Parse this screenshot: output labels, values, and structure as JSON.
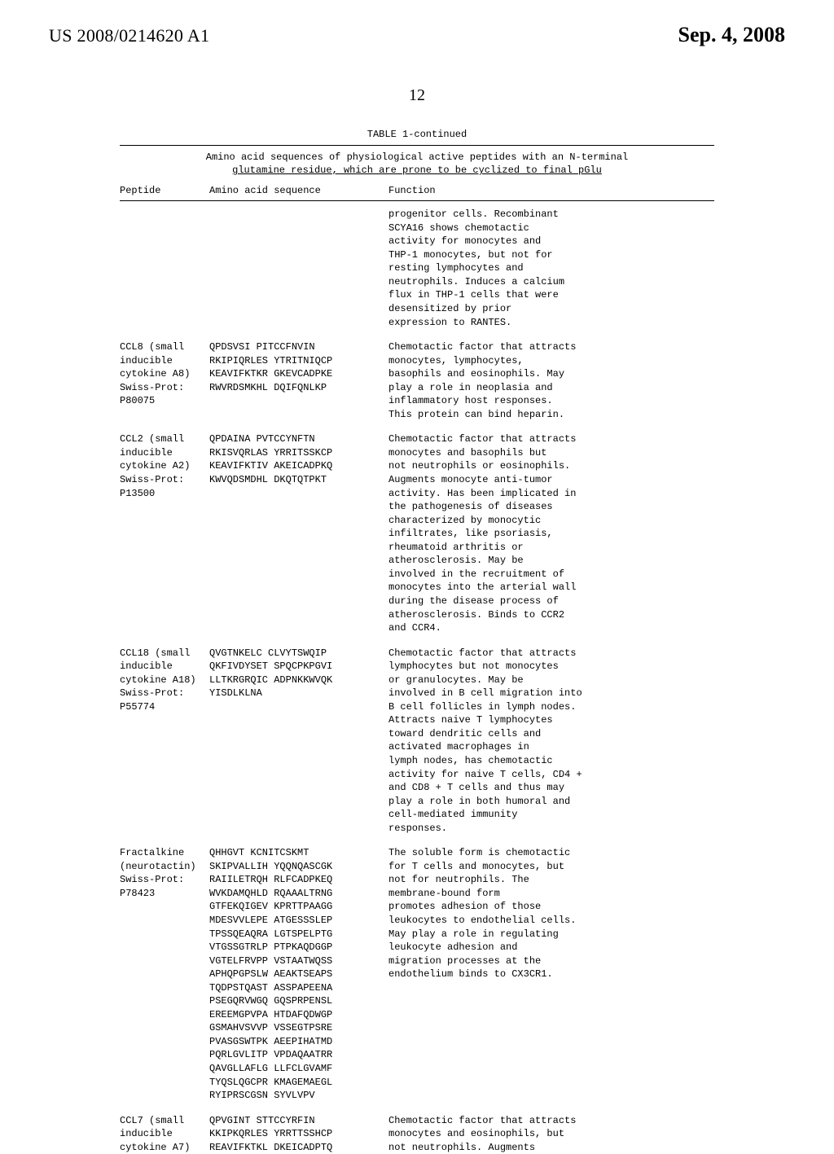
{
  "header": {
    "pub_number": "US 2008/0214620 A1",
    "date": "Sep. 4, 2008"
  },
  "page_number": "12",
  "table": {
    "title": "TABLE 1-continued",
    "subtitle_line1": "Amino acid sequences of physiological active peptides with an N-terminal",
    "subtitle_line2": "glutamine residue, which are prone to be cyclized to final pGlu",
    "columns": {
      "peptide": "Peptide",
      "sequence": "Amino acid sequence",
      "function": "Function"
    },
    "rows": [
      {
        "peptide": "",
        "sequence": "",
        "function": "progenitor cells. Recombinant\nSCYA16 shows chemotactic\nactivity for monocytes and\nTHP-1 monocytes, but not for\nresting lymphocytes and\nneutrophils. Induces a calcium\nflux in THP-1 cells that were\ndesensitized by prior\nexpression to RANTES."
      },
      {
        "peptide": "CCL8 (small\ninducible\ncytokine A8)\nSwiss-Prot:\nP80075",
        "sequence": "QPDSVSI PITCCFNVIN\nRKIPIQRLES YTRITNIQCP\nKEAVIFKTKR GKEVCADPKE\nRWVRDSMKHL DQIFQNLKP",
        "function": "Chemotactic factor that attracts\nmonocytes, lymphocytes,\nbasophils and eosinophils. May\nplay a role in neoplasia and\ninflammatory host responses.\nThis protein can bind heparin."
      },
      {
        "peptide": "CCL2 (small\ninducible\ncytokine A2)\nSwiss-Prot:\nP13500",
        "sequence": "QPDAINA PVTCCYNFTN\nRKISVQRLAS YRRITSSKCP\nKEAVIFKTIV AKEICADPKQ\nKWVQDSMDHL DKQTQTPKT",
        "function": "Chemotactic factor that attracts\nmonocytes and basophils but\nnot neutrophils or eosinophils.\nAugments monocyte anti-tumor\nactivity. Has been implicated in\nthe pathogenesis of diseases\ncharacterized by monocytic\ninfiltrates, like psoriasis,\nrheumatoid arthritis or\natherosclerosis. May be\ninvolved in the recruitment of\nmonocytes into the arterial wall\nduring the disease process of\natherosclerosis. Binds to CCR2\nand CCR4."
      },
      {
        "peptide": "CCL18 (small\ninducible\ncytokine A18)\nSwiss-Prot:\nP55774",
        "sequence": "QVGTNKELC CLVYTSWQIP\nQKFIVDYSET SPQCPKPGVI\nLLTKRGRQIC ADPNKKWVQK\nYISDLKLNA",
        "function": "Chemotactic factor that attracts\nlymphocytes but not monocytes\nor granulocytes. May be\ninvolved in B cell migration into\nB cell follicles in lymph nodes.\nAttracts naive T lymphocytes\ntoward dendritic cells and\nactivated macrophages in\nlymph nodes, has chemotactic\nactivity for naive T cells, CD4 +\nand CD8 + T cells and thus may\nplay a role in both humoral and\ncell-mediated immunity\nresponses."
      },
      {
        "peptide": "Fractalkine\n(neurotactin)\nSwiss-Prot:\nP78423",
        "sequence": "QHHGVT KCNITCSKMT\nSKIPVALLIH YQQNQASCGK\nRAIILETRQH RLFCADPKEQ\nWVKDAMQHLD RQAAALTRNG\nGTFEKQIGEV KPRTTPAAGG\nMDESVVLEPE ATGESSSLEP\nTPSSQEAQRA LGTSPELPTG\nVTGSSGTRLP PTPKAQDGGP\nVGTELFRVPP VSTAATWQSS\nAPHQPGPSLW AEAKTSEAPS\nTQDPSTQAST ASSPAPEENA\nPSEGQRVWGQ GQSPRPENSL\nEREEMGPVPA HTDAFQDWGP\nGSMAHVSVVP VSSEGTPSRE\nPVASGSWTPK AEEPIHATMD\nPQRLGVLITP VPDAQAATRR\nQAVGLLAFLG LLFCLGVAMF\nTYQSLQGCPR KMAGEMAEGL\nRYIPRSCGSN SYVLVPV",
        "function": "The soluble form is chemotactic\nfor T cells and monocytes, but\nnot for neutrophils. The\nmembrane-bound form\npromotes adhesion of those\nleukocytes to endothelial cells.\nMay play a role in regulating\nleukocyte adhesion and\nmigration processes at the\nendothelium binds to CX3CR1."
      },
      {
        "peptide": "CCL7 (small\ninducible\ncytokine A7)",
        "sequence": "QPVGINT STTCCYRFIN\nKKIPKQRLES YRRTTSSHCP\nREAVIFKTKL DKEICADPTQ",
        "function": "Chemotactic factor that attracts\nmonocytes and eosinophils, but\nnot neutrophils. Augments"
      }
    ]
  }
}
